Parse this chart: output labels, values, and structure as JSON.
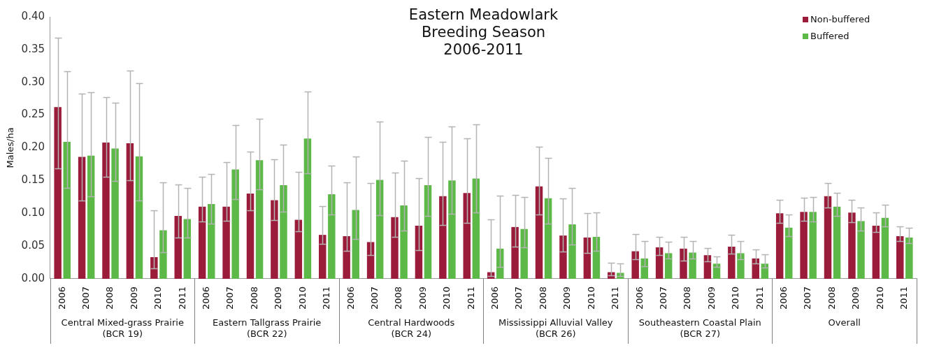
{
  "chart_data": {
    "type": "bar",
    "title": "Eastern Meadowlark\nBreeding Season\n2006-2011",
    "ylabel": "Males/ha",
    "categories": [
      "2006",
      "2007",
      "2008",
      "2009",
      "2010",
      "2011",
      "2006",
      "2007",
      "2008",
      "2009",
      "2010",
      "2011",
      "2006",
      "2007",
      "2008",
      "2009",
      "2010",
      "2011",
      "2006",
      "2007",
      "2008",
      "2009",
      "2010",
      "2011",
      "2006",
      "2007",
      "2008",
      "2009",
      "2010",
      "2011",
      "2006",
      "2007",
      "2008",
      "2009",
      "2010",
      "2011"
    ],
    "annotations": [
      "Central Mixed-grass Prairie\n(BCR 19)",
      "Eastern Tallgrass Prairie\n(BCR 22)",
      "Central Hardwoods\n(BCR 24)",
      "Mississippi Alluvial Valley\n(BCR 26)",
      "Southeastern Coastal Plain\n(BCR 27)",
      "Overall"
    ],
    "series": [
      {
        "name": "Non-buffered",
        "color": "#9b1b3a",
        "values": [
          0.262,
          0.186,
          0.208,
          0.207,
          0.033,
          0.096,
          0.11,
          0.11,
          0.13,
          0.12,
          0.09,
          0.067,
          0.065,
          0.056,
          0.094,
          0.081,
          0.126,
          0.131,
          0.01,
          0.079,
          0.141,
          0.066,
          0.063,
          0.01,
          0.042,
          0.048,
          0.046,
          0.036,
          0.049,
          0.031,
          0.1,
          0.102,
          0.126,
          0.101,
          0.081,
          0.065
        ],
        "errors": [
          [
            0.169,
            0.368
          ],
          [
            0.119,
            0.283
          ],
          [
            0.156,
            0.277
          ],
          [
            0.15,
            0.318
          ],
          [
            0.016,
            0.105
          ],
          [
            0.063,
            0.144
          ],
          [
            0.087,
            0.156
          ],
          [
            0.088,
            0.178
          ],
          [
            0.104,
            0.194
          ],
          [
            0.089,
            0.182
          ],
          [
            0.072,
            0.163
          ],
          [
            0.053,
            0.111
          ],
          [
            0.043,
            0.147
          ],
          [
            0.036,
            0.146
          ],
          [
            0.064,
            0.162
          ],
          [
            0.044,
            0.154
          ],
          [
            0.082,
            0.209
          ],
          [
            0.085,
            0.214
          ],
          [
            0.004,
            0.091
          ],
          [
            0.049,
            0.128
          ],
          [
            0.098,
            0.202
          ],
          [
            0.042,
            0.123
          ],
          [
            0.039,
            0.1
          ],
          [
            0.005,
            0.024
          ],
          [
            0.03,
            0.068
          ],
          [
            0.036,
            0.064
          ],
          [
            0.028,
            0.064
          ],
          [
            0.027,
            0.047
          ],
          [
            0.038,
            0.067
          ],
          [
            0.023,
            0.045
          ],
          [
            0.085,
            0.12
          ],
          [
            0.088,
            0.124
          ],
          [
            0.109,
            0.146
          ],
          [
            0.086,
            0.121
          ],
          [
            0.071,
            0.101
          ],
          [
            0.057,
            0.08
          ]
        ]
      },
      {
        "name": "Buffered",
        "color": "#5cb947",
        "values": [
          0.209,
          0.188,
          0.199,
          0.187,
          0.074,
          0.091,
          0.114,
          0.167,
          0.181,
          0.143,
          0.214,
          0.129,
          0.105,
          0.151,
          0.112,
          0.143,
          0.15,
          0.153,
          0.046,
          0.076,
          0.123,
          0.083,
          0.064,
          0.009,
          0.031,
          0.039,
          0.04,
          0.023,
          0.039,
          0.023,
          0.078,
          0.102,
          0.11,
          0.088,
          0.093,
          0.063
        ],
        "errors": [
          [
            0.139,
            0.317
          ],
          [
            0.126,
            0.285
          ],
          [
            0.149,
            0.269
          ],
          [
            0.119,
            0.299
          ],
          [
            0.04,
            0.147
          ],
          [
            0.063,
            0.139
          ],
          [
            0.084,
            0.16
          ],
          [
            0.122,
            0.235
          ],
          [
            0.136,
            0.244
          ],
          [
            0.102,
            0.205
          ],
          [
            0.161,
            0.286
          ],
          [
            0.098,
            0.173
          ],
          [
            0.061,
            0.187
          ],
          [
            0.097,
            0.24
          ],
          [
            0.073,
            0.18
          ],
          [
            0.096,
            0.216
          ],
          [
            0.099,
            0.233
          ],
          [
            0.101,
            0.236
          ],
          [
            0.018,
            0.127
          ],
          [
            0.048,
            0.125
          ],
          [
            0.084,
            0.184
          ],
          [
            0.052,
            0.139
          ],
          [
            0.043,
            0.101
          ],
          [
            0.004,
            0.023
          ],
          [
            0.019,
            0.057
          ],
          [
            0.031,
            0.056
          ],
          [
            0.031,
            0.058
          ],
          [
            0.018,
            0.034
          ],
          [
            0.03,
            0.058
          ],
          [
            0.017,
            0.037
          ],
          [
            0.065,
            0.098
          ],
          [
            0.087,
            0.125
          ],
          [
            0.096,
            0.131
          ],
          [
            0.074,
            0.109
          ],
          [
            0.08,
            0.113
          ],
          [
            0.054,
            0.078
          ]
        ]
      }
    ],
    "ylim": [
      0,
      0.4
    ],
    "yticks": [
      {
        "value": 0,
        "label": "0.00"
      },
      {
        "value": 0.05,
        "label": "0.05"
      },
      {
        "value": 0.1,
        "label": "0.10"
      },
      {
        "value": 0.15,
        "label": "0.15"
      },
      {
        "value": 0.2,
        "label": "0.20"
      },
      {
        "value": 0.25,
        "label": "0.25"
      },
      {
        "value": 0.3,
        "label": "0.30"
      },
      {
        "value": 0.35,
        "label": "0.35"
      },
      {
        "value": 0.4,
        "label": "0.40"
      }
    ],
    "grid": false,
    "legend": "top right"
  }
}
